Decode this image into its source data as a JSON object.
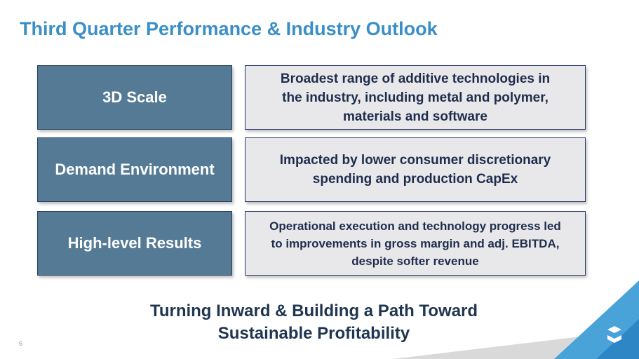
{
  "title": "Third Quarter Performance & Industry Outlook",
  "rows": [
    {
      "label": "3D Scale",
      "lines": [
        "Broadest range of additive technologies in",
        "the industry, including metal and polymer,",
        "materials and software"
      ]
    },
    {
      "label": "Demand Environment",
      "lines": [
        "Impacted by lower consumer discretionary",
        "spending and production CapEx"
      ]
    },
    {
      "label": "High-level Results",
      "lines": [
        "Operational execution and technology progress led",
        "to improvements in gross margin and adj. EBITDA,",
        "despite softer revenue"
      ]
    }
  ],
  "footer": [
    "Turning Inward & Building a Path Toward",
    "Sustainable Profitability"
  ],
  "page_number": "6"
}
